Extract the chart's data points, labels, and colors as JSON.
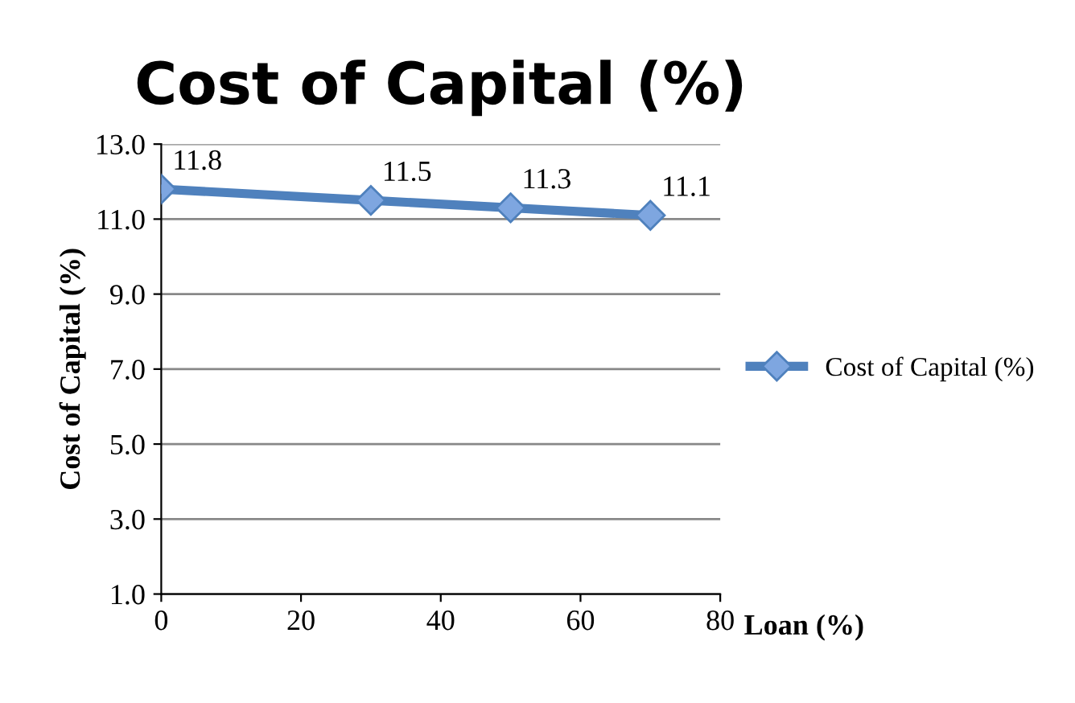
{
  "chart_data": {
    "type": "line",
    "title": "Cost of Capital (%)",
    "xlabel": "Loan (%)",
    "ylabel": "Cost of Capital (%)",
    "x": [
      0,
      30,
      50,
      70
    ],
    "series": [
      {
        "name": "Cost of Capital (%)",
        "color": "#4f81bd",
        "values": [
          11.8,
          11.5,
          11.3,
          11.1
        ]
      }
    ],
    "xlim": [
      0,
      80
    ],
    "xticks": [
      0,
      20,
      40,
      60,
      80
    ],
    "ylim": [
      1.0,
      13.0
    ],
    "yticks": [
      {
        "value": 1,
        "label": "1.0"
      },
      {
        "value": 3,
        "label": "3.0"
      },
      {
        "value": 5,
        "label": "5.0"
      },
      {
        "value": 7,
        "label": "7.0"
      },
      {
        "value": 9,
        "label": "9.0"
      },
      {
        "value": 11,
        "label": "11.0"
      },
      {
        "value": 13,
        "label": "13.0"
      }
    ],
    "grid": "y",
    "legend": "right",
    "marker": "diamond",
    "line_style": "solid",
    "data_labels": true
  }
}
